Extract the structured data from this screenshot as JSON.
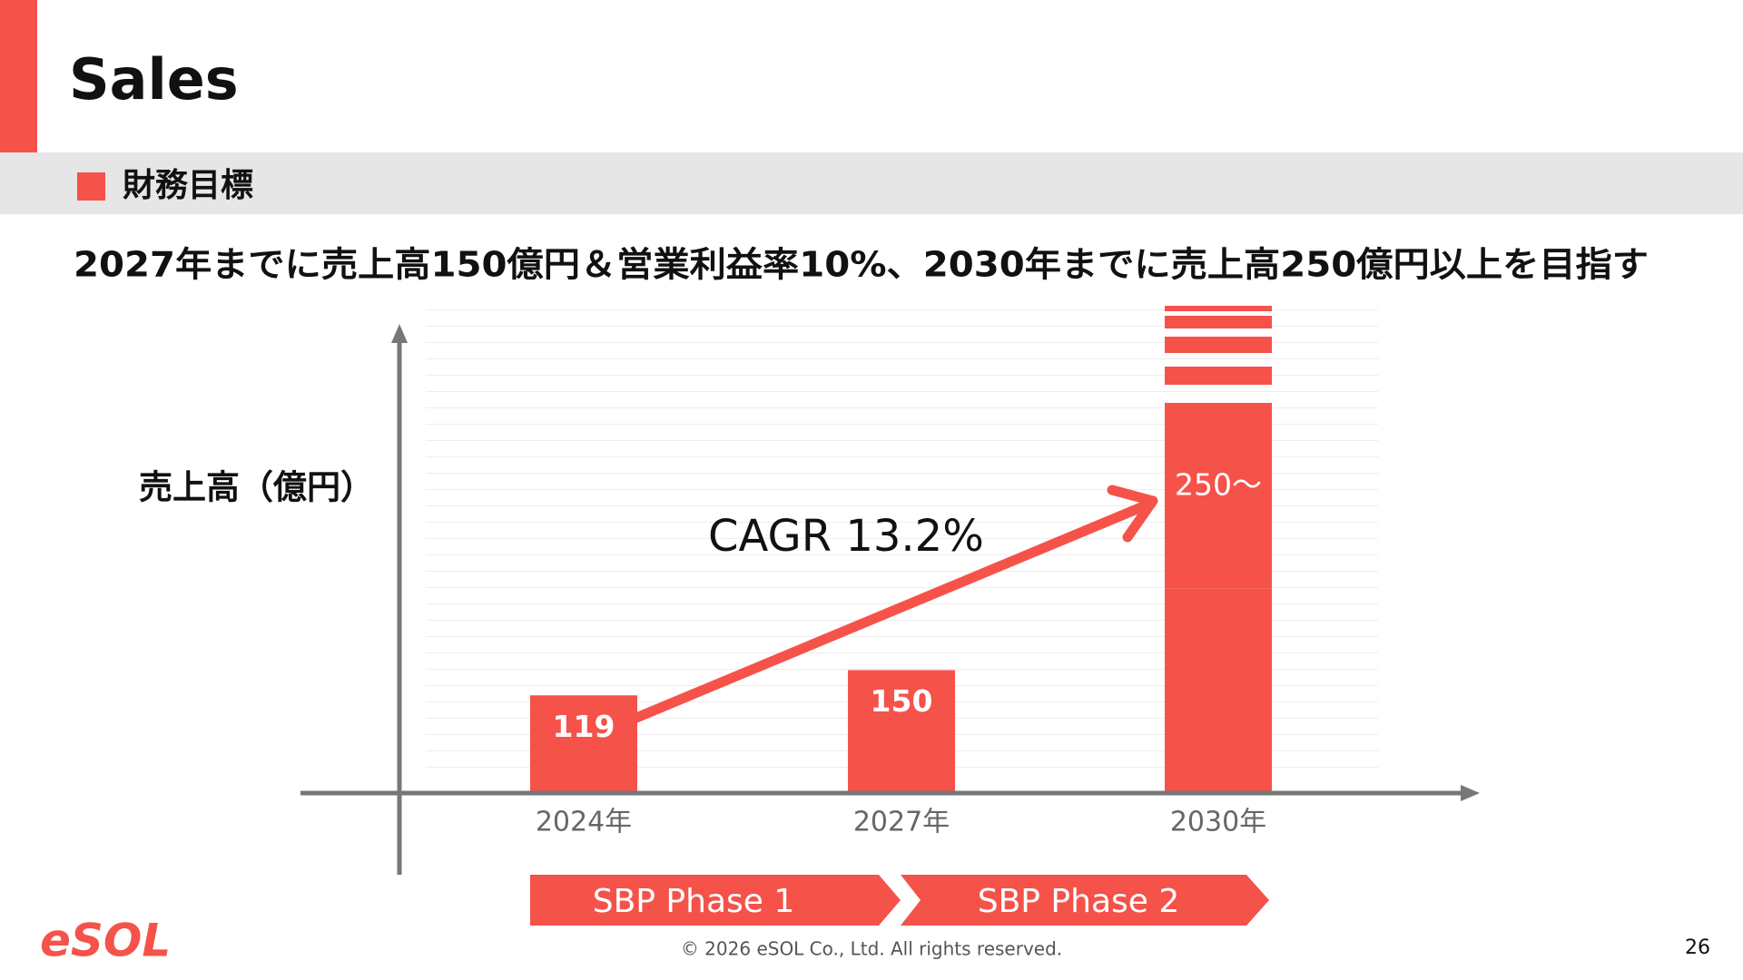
{
  "slide": {
    "title": "Sales",
    "section": "財務目標",
    "headline": "2027年までに売上高150億円＆営業利益率10%、2030年までに売上高250億円以上を目指す",
    "phases": [
      "SBP Phase 1",
      "SBP Phase 2"
    ],
    "logo": "eSOL",
    "copyright": "© 2026 eSOL Co., Ltd. All rights reserved.",
    "page_number": "26"
  },
  "chart_data": {
    "type": "bar",
    "y_label": "売上高（億円）",
    "annotation": "CAGR 13.2%",
    "categories": [
      "2024年",
      "2027年",
      "2030年"
    ],
    "values": [
      119,
      150,
      250
    ],
    "value_labels": [
      "119",
      "150",
      "250～"
    ],
    "broken": [
      false,
      false,
      true
    ],
    "color": "#f5524a",
    "ylim": [
      0,
      600
    ]
  }
}
